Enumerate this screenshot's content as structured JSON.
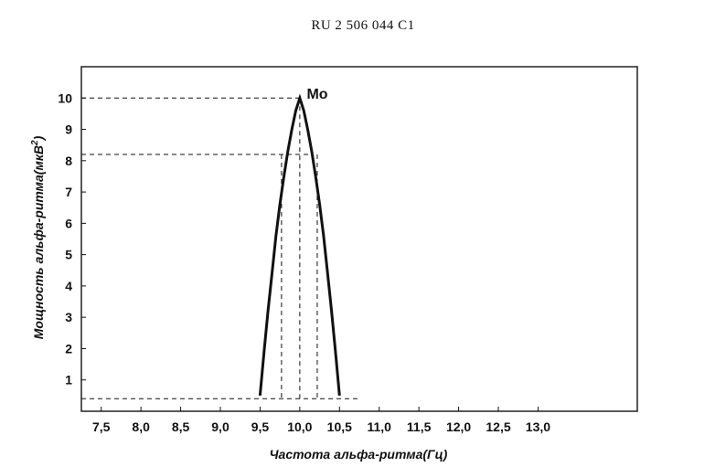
{
  "document": {
    "header": "RU   2 506 044  C1"
  },
  "chart_data": {
    "type": "line",
    "title": "",
    "xlabel": "Частота альфа-ритма(Гц)",
    "ylabel": "Мощность альфа-ритма(мкВ",
    "ylabel_sup": "2",
    "ylabel_close": ")",
    "peak_label": "Mo",
    "x_ticks": [
      "7,5",
      "8,0",
      "8,5",
      "9,0",
      "9,5",
      "10,0",
      "10,5",
      "11,0",
      "11,5",
      "12,0",
      "12,5",
      "13,0"
    ],
    "y_ticks": [
      "1",
      "2",
      "3",
      "4",
      "5",
      "6",
      "7",
      "8",
      "9",
      "10"
    ],
    "xlim": [
      7.25,
      14.25
    ],
    "ylim": [
      0,
      11
    ],
    "grid": false,
    "series": [
      {
        "x": [
          9.5,
          9.55,
          9.6,
          9.65,
          9.7,
          9.75,
          9.8,
          9.85,
          9.9,
          9.95,
          10.0,
          10.05,
          10.1,
          10.15,
          10.2,
          10.25,
          10.3,
          10.35,
          10.4,
          10.45,
          10.5
        ],
        "y": [
          0.5,
          1.9,
          3.2,
          4.4,
          5.6,
          6.6,
          7.5,
          8.3,
          9.0,
          9.6,
          10.0,
          9.6,
          9.0,
          8.3,
          7.5,
          6.6,
          5.6,
          4.4,
          3.2,
          1.9,
          0.5
        ]
      }
    ],
    "reference_lines": {
      "horizontal": [
        10,
        8.2,
        0.4
      ],
      "vertical": [
        9.77,
        10.0,
        10.22
      ]
    }
  }
}
